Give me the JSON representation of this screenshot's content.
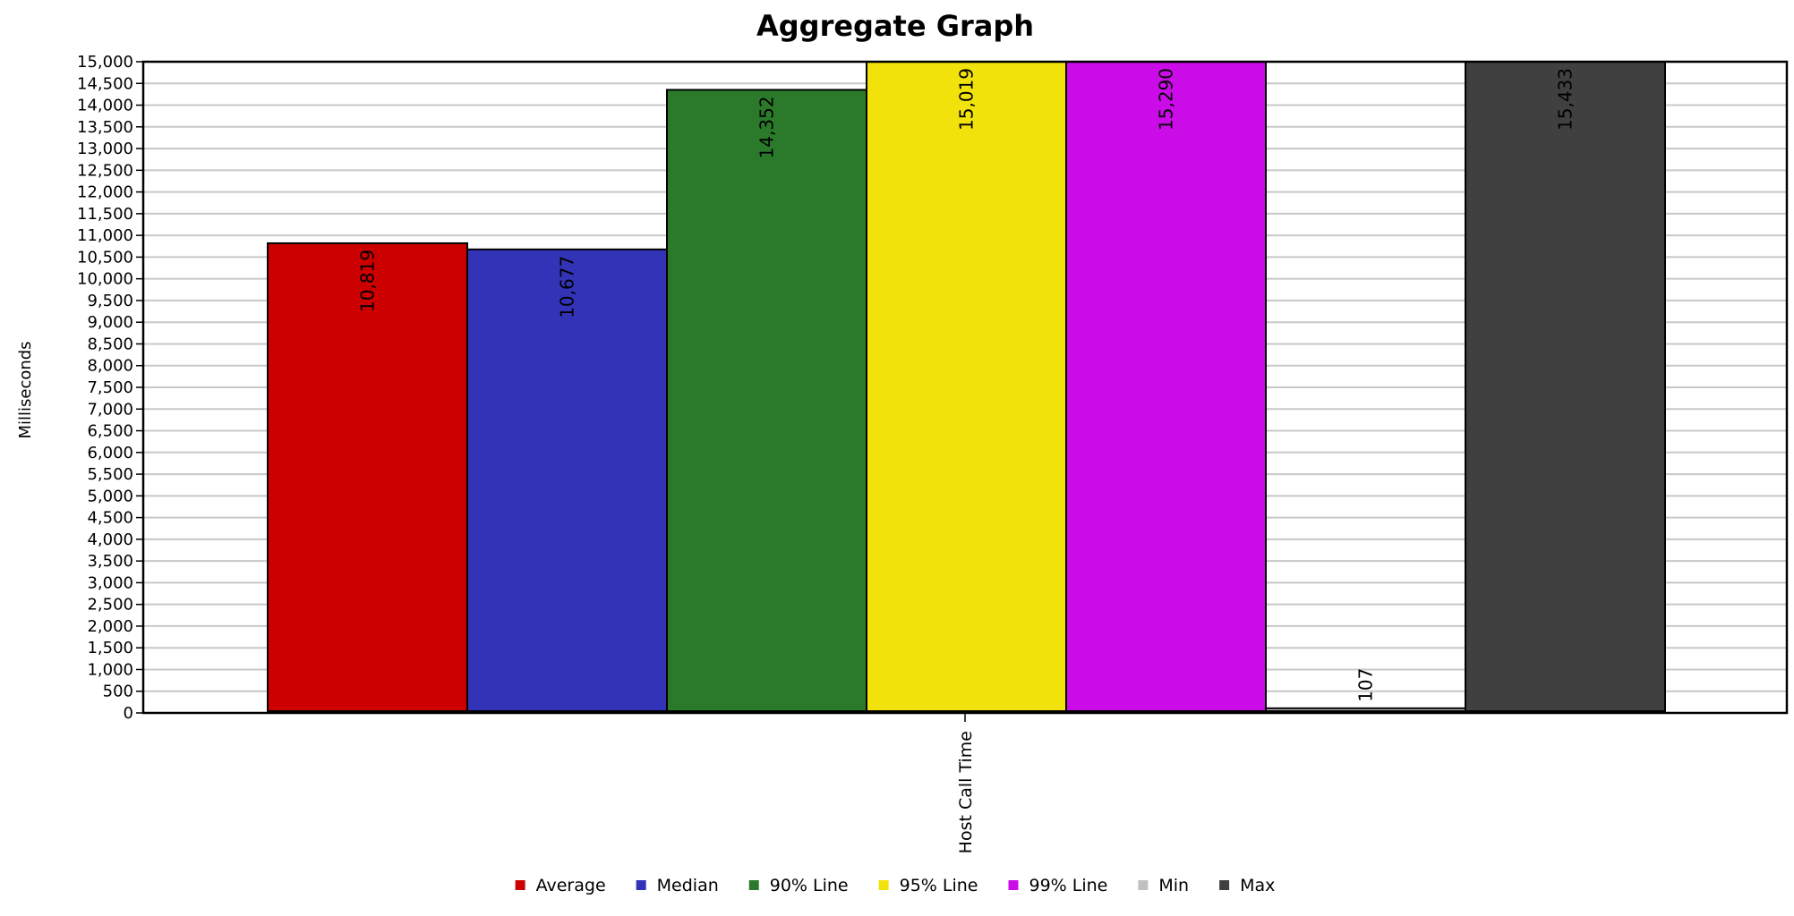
{
  "chart_data": {
    "type": "bar",
    "title": "Aggregate Graph",
    "xlabel": "",
    "ylabel": "Milliseconds",
    "categories": [
      "Host Call Time"
    ],
    "series": [
      {
        "name": "Average",
        "values": [
          10819
        ],
        "label": "10,819",
        "color": "#cc0000"
      },
      {
        "name": "Median",
        "values": [
          10677
        ],
        "label": "10,677",
        "color": "#3333b8"
      },
      {
        "name": "90% Line",
        "values": [
          14352
        ],
        "label": "14,352",
        "color": "#2b7a2b"
      },
      {
        "name": "95% Line",
        "values": [
          15019
        ],
        "label": "15,019",
        "color": "#f0e20a"
      },
      {
        "name": "99% Line",
        "values": [
          15290
        ],
        "label": "15,290",
        "color": "#cc0ce8"
      },
      {
        "name": "Min",
        "values": [
          107
        ],
        "label": "107",
        "color": "#c0c0c0"
      },
      {
        "name": "Max",
        "values": [
          15433
        ],
        "label": "15,433",
        "color": "#404040"
      }
    ],
    "ylim": [
      0,
      15000
    ],
    "yticks": [
      "0",
      "500",
      "1,000",
      "1,500",
      "2,000",
      "2,500",
      "3,000",
      "3,500",
      "4,000",
      "4,500",
      "5,000",
      "5,500",
      "6,000",
      "6,500",
      "7,000",
      "7,500",
      "8,000",
      "8,500",
      "9,000",
      "9,500",
      "10,000",
      "10,500",
      "11,000",
      "11,500",
      "12,000",
      "12,500",
      "13,000",
      "13,500",
      "14,000",
      "14,500",
      "15,000"
    ],
    "grid": true,
    "legend_position": "bottom"
  }
}
